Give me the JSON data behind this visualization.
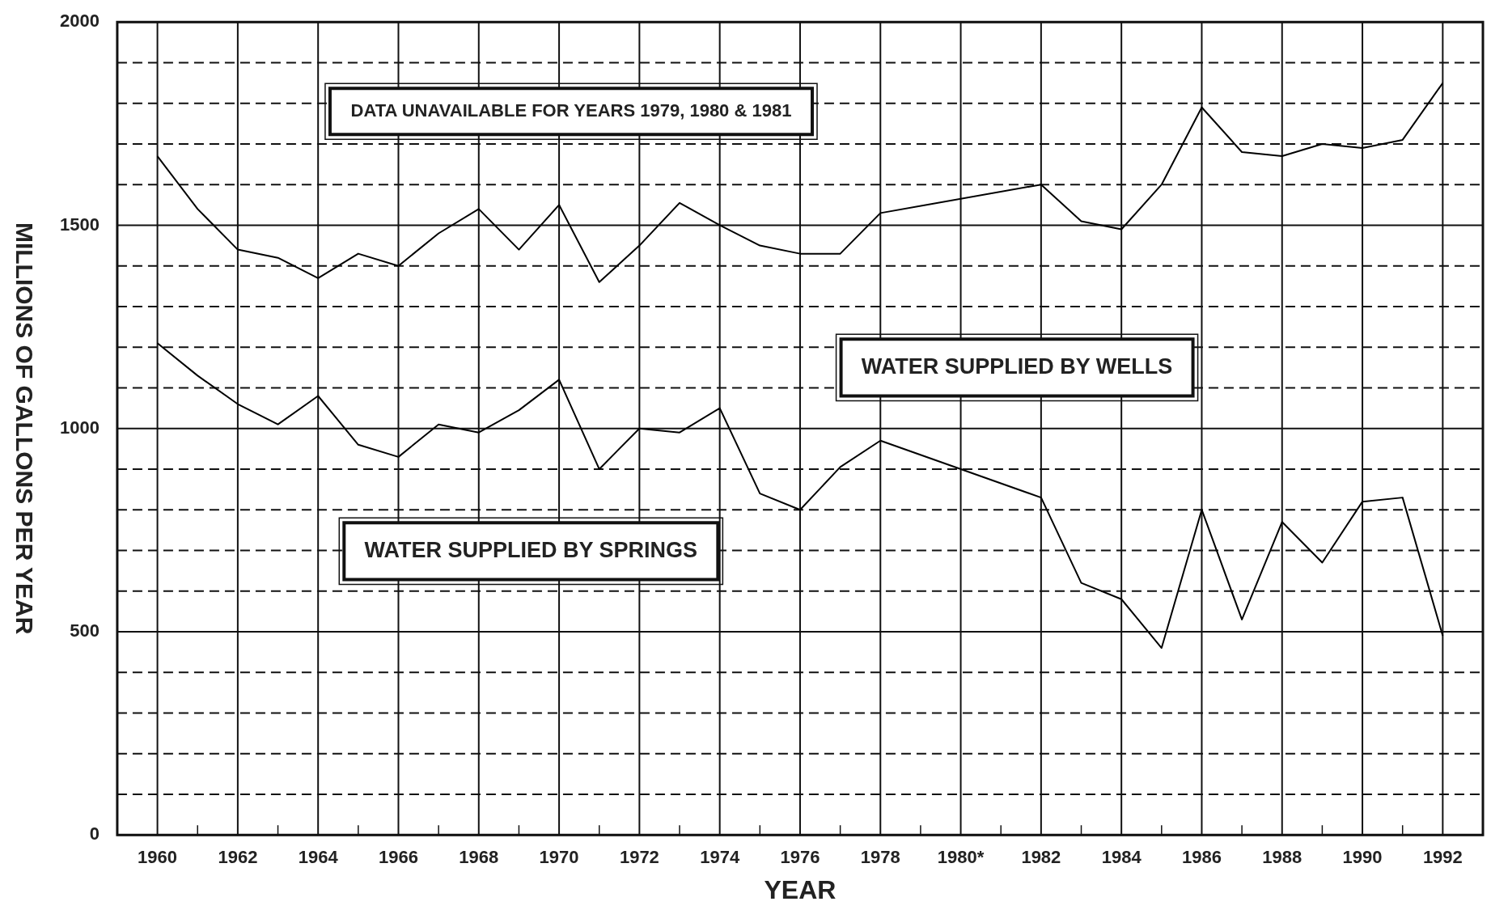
{
  "chart_data": {
    "type": "line",
    "xlabel": "YEAR",
    "ylabel": "MILLIONS OF GALLONS PER YEAR",
    "annotations": [
      "DATA UNAVAILABLE FOR YEARS 1979, 1980 & 1981",
      "WATER SUPPLIED BY WELLS",
      "WATER SUPPLIED BY SPRINGS"
    ],
    "x": [
      1960,
      1961,
      1962,
      1963,
      1964,
      1965,
      1966,
      1967,
      1968,
      1969,
      1970,
      1971,
      1972,
      1973,
      1974,
      1975,
      1976,
      1977,
      1978,
      1979,
      1980,
      1981,
      1982,
      1983,
      1984,
      1985,
      1986,
      1987,
      1988,
      1989,
      1990,
      1991,
      1992
    ],
    "series": [
      {
        "color": "#000000",
        "values": [
          1670,
          1540,
          1440,
          1420,
          1370,
          1430,
          1400,
          1480,
          1540,
          1440,
          1550,
          1360,
          1450,
          1555,
          1500,
          1450,
          1430,
          1430,
          1530,
          null,
          null,
          null,
          1600,
          1510,
          1490,
          1600,
          1790,
          1680,
          1670,
          1700,
          1690,
          1710,
          1850
        ]
      },
      {
        "color": "#000000",
        "values": [
          1210,
          1130,
          1060,
          1010,
          1080,
          960,
          930,
          1010,
          990,
          1045,
          1120,
          900,
          1000,
          990,
          1050,
          840,
          800,
          905,
          970,
          null,
          null,
          null,
          830,
          620,
          580,
          460,
          800,
          530,
          770,
          670,
          820,
          830,
          490
        ]
      }
    ],
    "xlim": [
      1959,
      1993
    ],
    "xticks": [
      1960,
      {
        "value": 1961,
        "label": null
      },
      1962,
      {
        "value": 1963,
        "label": null
      },
      1964,
      {
        "value": 1965,
        "label": null
      },
      1966,
      {
        "value": 1967,
        "label": null
      },
      1968,
      {
        "value": 1969,
        "label": null
      },
      1970,
      {
        "value": 1971,
        "label": null
      },
      1972,
      {
        "value": 1973,
        "label": null
      },
      1974,
      {
        "value": 1975,
        "label": null
      },
      1976,
      {
        "value": 1977,
        "label": null
      },
      1978,
      {
        "value": 1979,
        "label": null
      },
      {
        "value": 1980,
        "label": "1980*"
      },
      {
        "value": 1981,
        "label": null
      },
      1982,
      {
        "value": 1983,
        "label": null
      },
      1984,
      {
        "value": 1985,
        "label": null
      },
      1986,
      {
        "value": 1987,
        "label": null
      },
      1988,
      {
        "value": 1989,
        "label": null
      },
      1990,
      {
        "value": 1991,
        "label": null
      },
      1992
    ],
    "ylim": [
      0,
      2000
    ],
    "yticks": [
      0,
      {
        "value": 100,
        "label": null
      },
      {
        "value": 200,
        "label": null
      },
      {
        "value": 300,
        "label": null
      },
      {
        "value": 400,
        "label": null
      },
      500,
      {
        "value": 600,
        "label": null
      },
      {
        "value": 700,
        "label": null
      },
      {
        "value": 800,
        "label": null
      },
      {
        "value": 900,
        "label": null
      },
      1000,
      {
        "value": 1100,
        "label": null
      },
      {
        "value": 1200,
        "label": null
      },
      {
        "value": 1300,
        "label": null
      },
      {
        "value": 1400,
        "label": null
      },
      1500,
      {
        "value": 1600,
        "label": null
      },
      {
        "value": 1700,
        "label": null
      },
      {
        "value": 1800,
        "label": null
      },
      {
        "value": 1900,
        "label": null
      },
      2000
    ],
    "grid": true,
    "legend": false,
    "marker": "none",
    "line_style": "solid"
  }
}
